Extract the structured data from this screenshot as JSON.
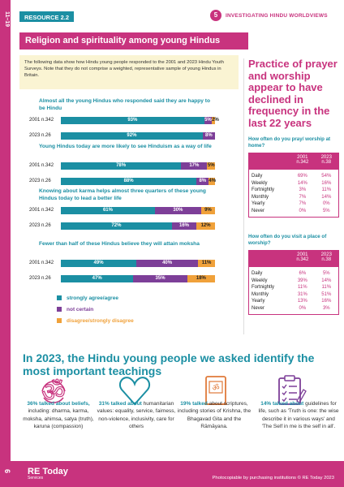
{
  "sidebar": {
    "label": "11–19"
  },
  "header": {
    "resource": "RESOURCE 2.2",
    "badge": "5",
    "series": "INVESTIGATING HINDU WORLDVIEWS"
  },
  "title": "Religion and spirituality among young Hindus",
  "intro": "The following data show how Hindu young people responded to the 2001 and 2023 Hindu Youth Surveys. Note that they do not comprise a weighted, representative sample of young Hindus in Britain.",
  "colors": {
    "agree": "#1b8fa3",
    "not_certain": "#7d3f98",
    "disagree": "#f0a13a",
    "accent": "#c8337e"
  },
  "survey": {
    "questions": [
      {
        "text": "Almost all the young Hindus who responded said they are happy to be Hindu",
        "rows": [
          {
            "label": "2001 n.342",
            "values": [
              93,
              5,
              2
            ],
            "labels": [
              "93%",
              "5%",
              "2%"
            ]
          },
          {
            "label": "2023 n.26",
            "values": [
              92,
              8,
              0
            ],
            "labels": [
              "92%",
              "8%",
              ""
            ]
          }
        ]
      },
      {
        "text": "Young Hindus today are more likely to see Hinduism as a way of life",
        "rows": [
          {
            "label": "2001 n.342",
            "values": [
              78,
              17,
              5
            ],
            "labels": [
              "78%",
              "17%",
              "5%"
            ]
          },
          {
            "label": "2023 n.26",
            "values": [
              88,
              8,
              4
            ],
            "labels": [
              "88%",
              "8%",
              "4%"
            ]
          }
        ]
      },
      {
        "text": "Knowing about karma helps almost three quarters of these young Hindus today to lead a better life",
        "rows": [
          {
            "label": "2001 n.342",
            "values": [
              61,
              30,
              9
            ],
            "labels": [
              "61%",
              "30%",
              "9%"
            ]
          },
          {
            "label": "2023 n.26",
            "values": [
              72,
              16,
              12
            ],
            "labels": [
              "72%",
              "16%",
              "12%"
            ]
          }
        ]
      },
      {
        "text": "Fewer than half of these Hindus believe they will attain moksha",
        "rows": [
          {
            "label": "2001 n.342",
            "values": [
              49,
              40,
              11
            ],
            "labels": [
              "49%",
              "40%",
              "11%"
            ]
          },
          {
            "label": "2023 n.26",
            "values": [
              47,
              35,
              18
            ],
            "labels": [
              "47%",
              "35%",
              "18%"
            ]
          }
        ]
      }
    ],
    "legend": [
      "strongly agree/agree",
      "not certain",
      "disagree/strongly disagree"
    ]
  },
  "practice": {
    "heading": "Practice of prayer and worship appear to have declined in frequency in the last 22 years",
    "q1": "How often do you pray/ worship at home?",
    "q2": "How often do you visit a place of worship?",
    "cols": [
      [
        "2001",
        "n.342"
      ],
      [
        "2023",
        "n.38"
      ]
    ],
    "table1": [
      [
        "Daily",
        "69%",
        "54%"
      ],
      [
        "Weekly",
        "14%",
        "16%"
      ],
      [
        "Fortnightly",
        "3%",
        "11%"
      ],
      [
        "Monthly",
        "7%",
        "14%"
      ],
      [
        "Yearly",
        "7%",
        "0%"
      ],
      [
        "Never",
        "0%",
        "5%"
      ]
    ],
    "table2": [
      [
        "Daily",
        "6%",
        "5%"
      ],
      [
        "Weekly",
        "39%",
        "14%"
      ],
      [
        "Fortnightly",
        "11%",
        "11%"
      ],
      [
        "Monthly",
        "31%",
        "51%"
      ],
      [
        "Yearly",
        "13%",
        "16%"
      ],
      [
        "Never",
        "0%",
        "3%"
      ]
    ]
  },
  "teachings": {
    "heading_a": "In 2023, the Hindu young people we asked identify the",
    "heading_b": "most important teachings",
    "items": [
      {
        "icon": "om-icon",
        "lead": "36% talked about beliefs,",
        "rest": "including: dharma, karma, moksha, ahimsa, satya (truth), karuna (compassion)"
      },
      {
        "icon": "heart-icon",
        "lead": "31% talked about",
        "rest": "humanitarian values: equality, service, fairness, non-violence, inclusivity, care for others"
      },
      {
        "icon": "scripture-icon",
        "lead": "19% talked",
        "rest": "about scriptures, including stories of Krishna, the Bhagavad Gita and the Rāmāyana."
      },
      {
        "icon": "checklist-icon",
        "lead": "14% talked about",
        "rest": "guidelines for life, such as 'Truth is one: the wise describe it in various ways' and 'The Self in me is the self in all'."
      }
    ]
  },
  "footer": {
    "page": "6",
    "logo": "RE Today",
    "logo_sub": "Services",
    "copyright": "Photocopiable by purchasing institutions © RE Today 2023"
  }
}
